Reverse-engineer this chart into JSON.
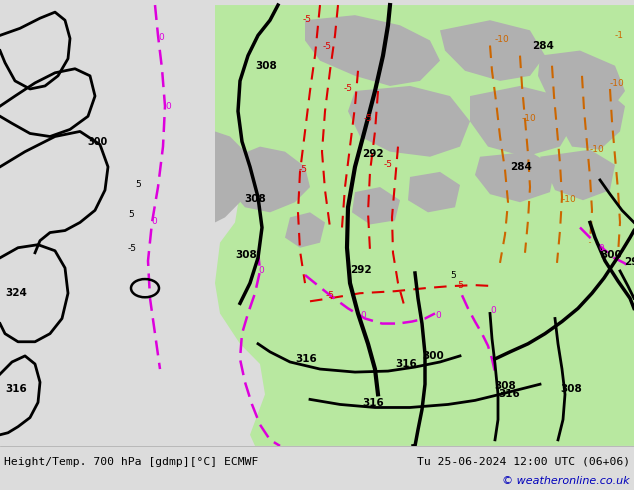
{
  "title_left": "Height/Temp. 700 hPa [gdmp][°C] ECMWF",
  "title_right": "Tu 25-06-2024 12:00 UTC (06+06)",
  "copyright": "© weatheronline.co.uk",
  "bg_color": "#dcdcdc",
  "green_color": "#b8e8a0",
  "gray_color": "#b0b0b0",
  "bottom_bar_color": "#e8e8e8",
  "black": "#000000",
  "red": "#dd0000",
  "orange": "#cc6600",
  "magenta": "#dd00dd",
  "copyright_color": "#0000bb"
}
